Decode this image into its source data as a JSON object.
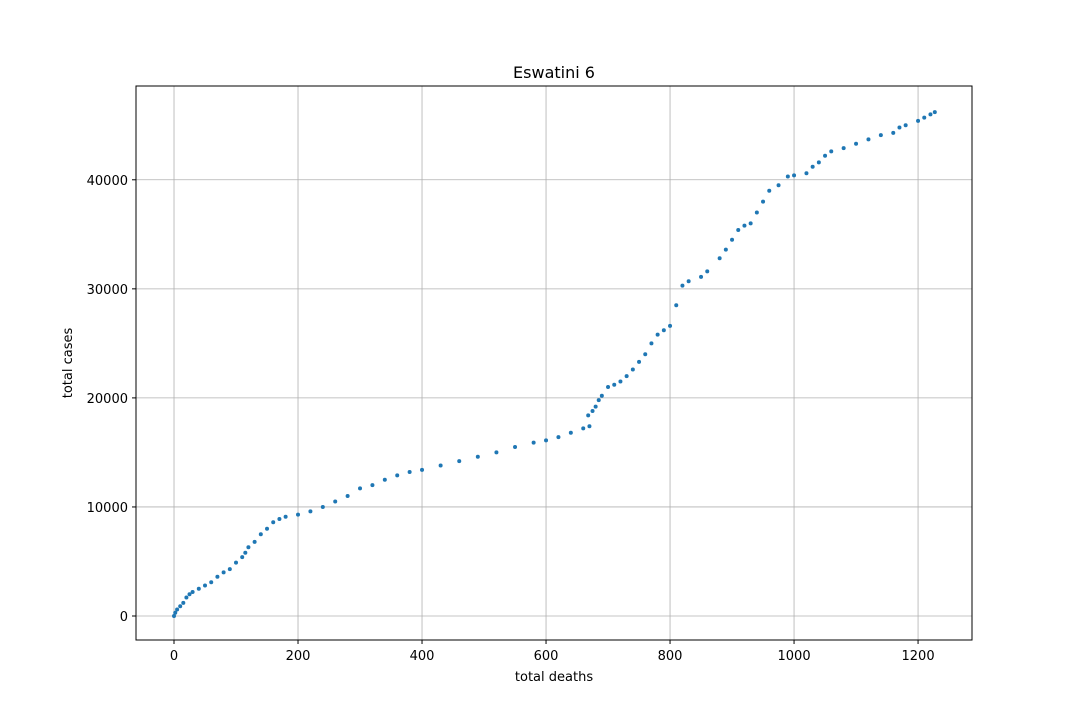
{
  "chart_data": {
    "type": "scatter",
    "title": "Eswatini 6",
    "x_label": "total deaths",
    "y_label": "total cases",
    "x": [
      0,
      2,
      5,
      10,
      15,
      20,
      25,
      30,
      40,
      50,
      60,
      70,
      80,
      90,
      100,
      110,
      115,
      120,
      130,
      140,
      150,
      160,
      170,
      180,
      200,
      220,
      240,
      260,
      280,
      300,
      320,
      340,
      360,
      380,
      400,
      430,
      460,
      490,
      520,
      550,
      580,
      600,
      620,
      640,
      660,
      670,
      668,
      675,
      680,
      685,
      690,
      700,
      710,
      720,
      730,
      740,
      750,
      760,
      770,
      780,
      790,
      800,
      810,
      820,
      830,
      850,
      860,
      880,
      890,
      900,
      910,
      920,
      930,
      940,
      950,
      960,
      975,
      990,
      1000,
      1020,
      1030,
      1040,
      1050,
      1060,
      1080,
      1100,
      1120,
      1140,
      1160,
      1170,
      1180,
      1200,
      1210,
      1220,
      1227
    ],
    "series": [
      {
        "name": "total cases",
        "color": "#1f77b4",
        "values": [
          0,
          300,
          600,
          900,
          1200,
          1700,
          2000,
          2200,
          2500,
          2800,
          3100,
          3600,
          4000,
          4300,
          4900,
          5400,
          5800,
          6300,
          6800,
          7500,
          8000,
          8600,
          8900,
          9100,
          9300,
          9600,
          10000,
          10500,
          11000,
          11700,
          12000,
          12500,
          12900,
          13200,
          13400,
          13800,
          14200,
          14600,
          15000,
          15500,
          15900,
          16100,
          16400,
          16800,
          17200,
          17400,
          18400,
          18800,
          19200,
          19800,
          20200,
          21000,
          21200,
          21500,
          22000,
          22600,
          23300,
          24000,
          25000,
          25800,
          26200,
          26600,
          28500,
          30300,
          30700,
          31100,
          31600,
          32800,
          33600,
          34500,
          35400,
          35800,
          36000,
          37000,
          38000,
          39000,
          39500,
          40300,
          40400,
          40600,
          41200,
          41600,
          42200,
          42600,
          42900,
          43300,
          43700,
          44100,
          44300,
          44800,
          45000,
          45400,
          45700,
          46000,
          46200
        ]
      }
    ],
    "xlim": [
      -61.3,
      1287
    ],
    "ylim": [
      -2200,
      48600
    ],
    "xticks": [
      0,
      200,
      400,
      600,
      800,
      1000,
      1200
    ],
    "yticks": [
      0,
      10000,
      20000,
      30000,
      40000
    ],
    "grid": true
  }
}
